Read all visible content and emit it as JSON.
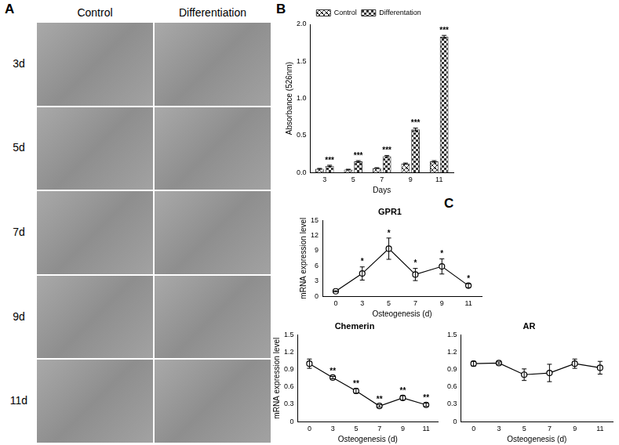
{
  "panel_labels": [
    "A",
    "B",
    "C"
  ],
  "micrographs": {
    "columns": [
      "Control",
      "Differentiation"
    ],
    "rows": [
      "3d",
      "5d",
      "7d",
      "9d",
      "11d"
    ]
  },
  "chart_data": [
    {
      "type": "bar",
      "x_label": "Days",
      "y_label": "Absorbance (526nm)",
      "categories": [
        3,
        5,
        7,
        9,
        11
      ],
      "series": [
        {
          "name": "Control",
          "color": "#333333",
          "values": [
            0.05,
            0.04,
            0.06,
            0.12,
            0.15
          ],
          "errors": [
            0.005,
            0.004,
            0.005,
            0.008,
            0.01
          ]
        },
        {
          "name": "Differentation",
          "color": "#333333",
          "values": [
            0.09,
            0.15,
            0.22,
            0.58,
            1.83
          ],
          "errors": [
            0.008,
            0.01,
            0.01,
            0.02,
            0.02
          ],
          "significance": [
            "***",
            "***",
            "***",
            "***",
            "***"
          ]
        }
      ],
      "ylim": [
        0,
        2
      ],
      "yticks": [
        {
          "value": 0,
          "label": "0.0"
        },
        {
          "value": 0.5,
          "label": "0.5"
        },
        {
          "value": 1,
          "label": "1.0"
        },
        {
          "value": 1.5,
          "label": "1.5"
        },
        {
          "value": 2,
          "label": "2.0"
        }
      ],
      "legend": "top"
    },
    {
      "type": "line",
      "title": "GPR1",
      "x_label": "Osteogenesis (d)",
      "y_label": "mRNA expression level",
      "categories": [
        0,
        3,
        5,
        7,
        9,
        11
      ],
      "series": [
        {
          "color": "#000000",
          "marker": "circle",
          "values": [
            1,
            4.5,
            9.4,
            4.3,
            5.9,
            2.1
          ],
          "errors": [
            0.1,
            1.3,
            2.1,
            1.2,
            1.5,
            0.4
          ],
          "significance": [
            null,
            "*",
            "*",
            "*",
            "*",
            "*"
          ]
        }
      ],
      "ylim": [
        0,
        15
      ],
      "yticks": [
        0,
        3,
        6,
        9,
        12,
        15
      ]
    },
    {
      "type": "line",
      "title": "Chemerin",
      "x_label": "Osteogenesis (d)",
      "y_label": "mRNA expression level",
      "categories": [
        0,
        3,
        5,
        7,
        9,
        11
      ],
      "series": [
        {
          "color": "#000000",
          "marker": "circle",
          "values": [
            1.0,
            0.76,
            0.53,
            0.27,
            0.41,
            0.29
          ],
          "errors": [
            0.08,
            0.02,
            0.04,
            0.02,
            0.04,
            0.03
          ],
          "significance": [
            null,
            "**",
            "**",
            "**",
            "**",
            "**"
          ]
        }
      ],
      "ylim": [
        0,
        1.5
      ],
      "yticks": [
        0,
        0.3,
        0.6,
        0.9,
        1.2,
        1.5
      ]
    },
    {
      "type": "line",
      "title": "AR",
      "x_label": "Osteogenesis (d)",
      "categories": [
        0,
        3,
        5,
        7,
        9,
        11
      ],
      "series": [
        {
          "color": "#000000",
          "marker": "circle",
          "values": [
            1.0,
            1.01,
            0.81,
            0.84,
            1.0,
            0.93
          ],
          "errors": [
            0.04,
            0.02,
            0.1,
            0.15,
            0.08,
            0.11
          ]
        }
      ],
      "ylim": [
        0,
        1.5
      ],
      "yticks": [
        0,
        0.3,
        0.6,
        0.9,
        1.2,
        1.5
      ]
    }
  ]
}
